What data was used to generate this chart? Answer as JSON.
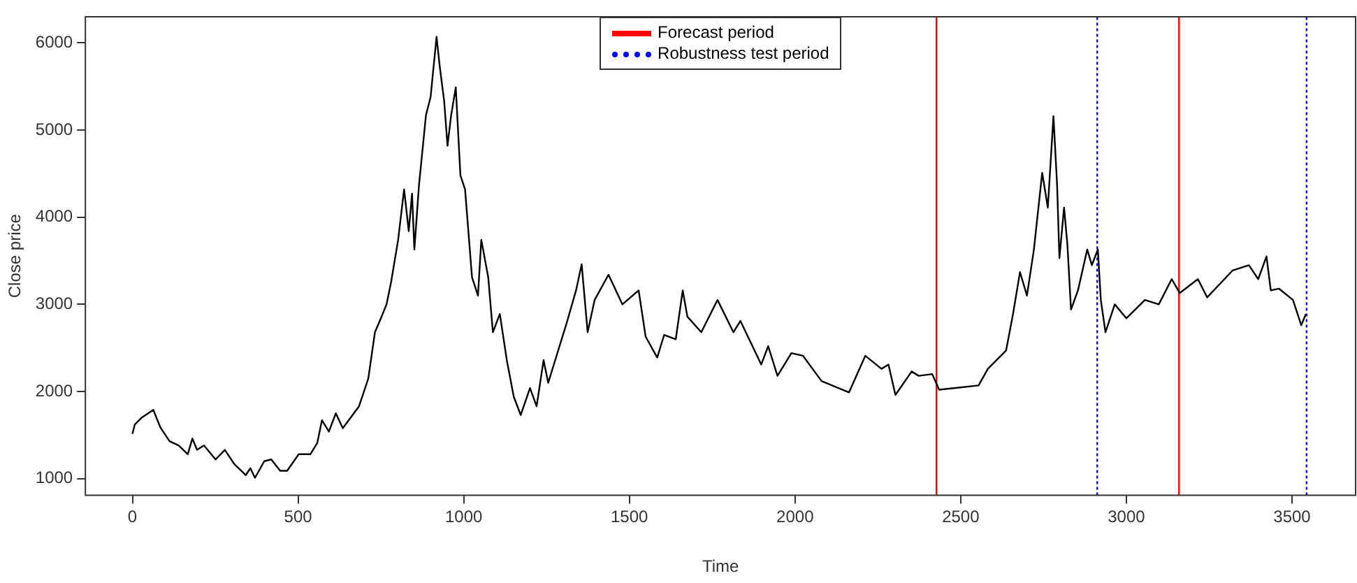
{
  "chart_data": {
    "type": "line",
    "xlabel": "Time",
    "ylabel": "Close price",
    "xlim": [
      -142,
      3692
    ],
    "ylim": [
      810,
      6300
    ],
    "xticks": [
      0,
      500,
      1000,
      1500,
      2000,
      2500,
      3000,
      3500
    ],
    "yticks": [
      1000,
      2000,
      3000,
      4000,
      5000,
      6000
    ],
    "grid": false,
    "legend": "top",
    "line_style": "solid",
    "marker": "none",
    "series": [
      {
        "color": "#000000",
        "x": [
          0,
          7,
          28,
          63,
          84,
          112,
          140,
          167,
          181,
          195,
          216,
          251,
          279,
          307,
          342,
          356,
          370,
          398,
          419,
          446,
          467,
          502,
          537,
          558,
          572,
          593,
          614,
          635,
          684,
          712,
          732,
          750,
          767,
          781,
          802,
          820,
          834,
          844,
          851,
          865,
          886,
          900,
          918,
          927,
          941,
          951,
          962,
          976,
          990,
          1004,
          1025,
          1043,
          1053,
          1074,
          1088,
          1109,
          1130,
          1151,
          1172,
          1200,
          1220,
          1241,
          1255,
          1311,
          1339,
          1356,
          1374,
          1395,
          1437,
          1479,
          1528,
          1549,
          1584,
          1605,
          1640,
          1661,
          1675,
          1717,
          1766,
          1814,
          1835,
          1898,
          1919,
          1947,
          1989,
          2024,
          2080,
          2163,
          2212,
          2261,
          2282,
          2303,
          2352,
          2373,
          2414,
          2435,
          2484,
          2554,
          2582,
          2637,
          2658,
          2679,
          2700,
          2721,
          2746,
          2763,
          2780,
          2791,
          2798,
          2812,
          2822,
          2833,
          2854,
          2882,
          2896,
          2914,
          2923,
          2937,
          2965,
          3000,
          3056,
          3098,
          3137,
          3161,
          3216,
          3244,
          3321,
          3370,
          3398,
          3423,
          3436,
          3461,
          3503,
          3528,
          3542
        ],
        "values": [
          1514,
          1620,
          1700,
          1790,
          1590,
          1430,
          1380,
          1280,
          1460,
          1330,
          1380,
          1220,
          1330,
          1170,
          1040,
          1120,
          1010,
          1200,
          1220,
          1090,
          1090,
          1280,
          1280,
          1410,
          1670,
          1540,
          1750,
          1580,
          1830,
          2150,
          2680,
          2840,
          3000,
          3260,
          3740,
          4320,
          3840,
          4270,
          3630,
          4370,
          5170,
          5380,
          6070,
          5750,
          5330,
          4820,
          5170,
          5490,
          4480,
          4320,
          3310,
          3100,
          3740,
          3310,
          2680,
          2890,
          2360,
          1940,
          1730,
          2040,
          1830,
          2360,
          2100,
          2790,
          3160,
          3460,
          2680,
          3050,
          3340,
          3000,
          3160,
          2630,
          2390,
          2650,
          2600,
          3160,
          2860,
          2680,
          3050,
          2680,
          2810,
          2310,
          2520,
          2180,
          2440,
          2410,
          2120,
          1990,
          2410,
          2260,
          2310,
          1960,
          2230,
          2180,
          2200,
          2020,
          2040,
          2070,
          2260,
          2470,
          2890,
          3370,
          3100,
          3630,
          4510,
          4110,
          5160,
          4370,
          3530,
          4110,
          3690,
          2940,
          3160,
          3630,
          3450,
          3630,
          3050,
          2680,
          3000,
          2840,
          3050,
          3000,
          3290,
          3130,
          3290,
          3080,
          3390,
          3450,
          3290,
          3550,
          3160,
          3180,
          3050,
          2760,
          2890
        ]
      },
      {
        "name": "Forecast period",
        "color": "#ff0000",
        "line_style": "solid",
        "x": [
          2427,
          2427
        ],
        "values": [
          810,
          6300
        ]
      },
      {
        "name": "Robustness test period",
        "color": "#0000ff",
        "line_style": "dotted",
        "x": [
          2912,
          2912
        ],
        "values": [
          810,
          6300
        ]
      },
      {
        "color": "#ff0000",
        "line_style": "solid",
        "x": [
          3159,
          3159
        ],
        "values": [
          810,
          6300
        ]
      },
      {
        "color": "#0000ff",
        "line_style": "dotted",
        "x": [
          3544,
          3544
        ],
        "values": [
          810,
          6300
        ]
      }
    ]
  }
}
